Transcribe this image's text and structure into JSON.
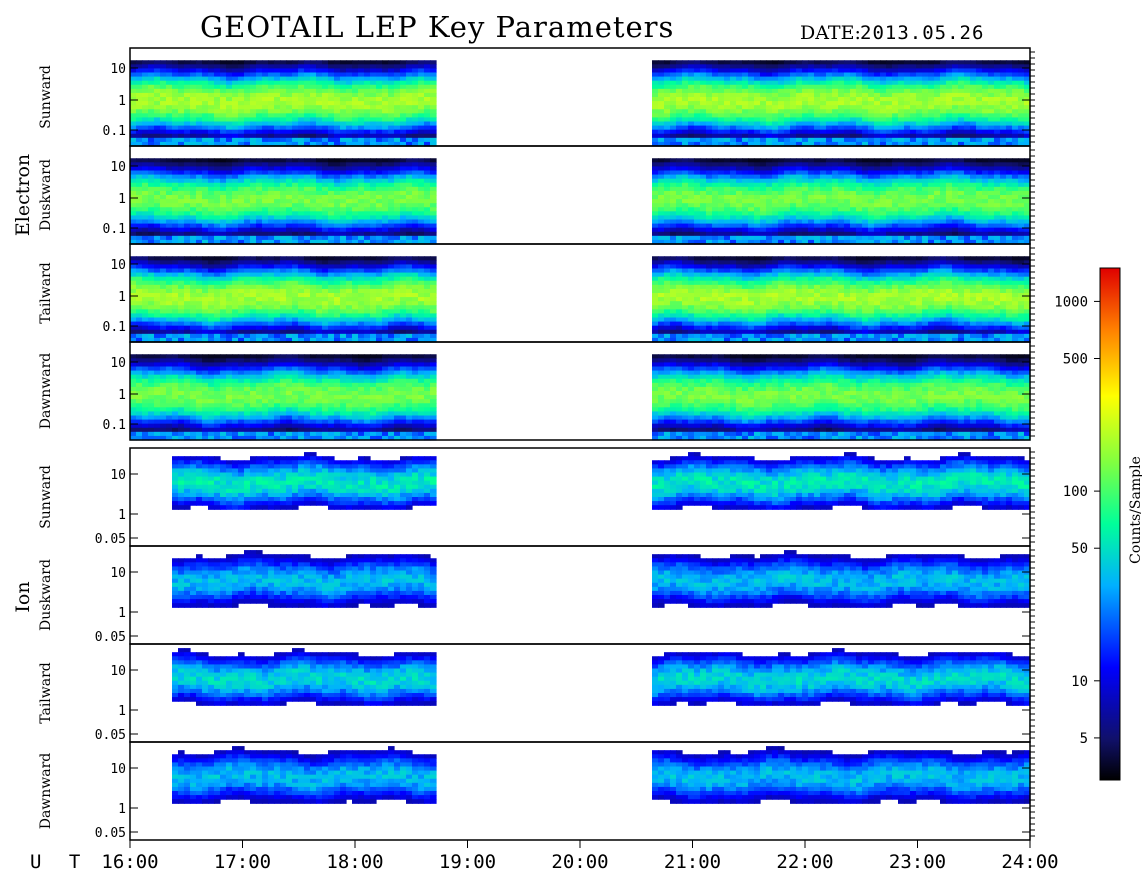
{
  "header": {
    "title": "GEOTAIL LEP Key Parameters",
    "date_label": "DATE:",
    "date_value": "2013.05.26"
  },
  "colorbar": {
    "label": "Counts/Sample",
    "ticks": [
      "1000",
      "500",
      "100",
      "50",
      "10",
      "5"
    ],
    "tick_values": [
      1000,
      500,
      100,
      50,
      10,
      5
    ],
    "range": [
      3,
      1500
    ],
    "scale": "log"
  },
  "chart_data": {
    "type": "heatmap",
    "title": "GEOTAIL LEP Key Parameters",
    "x_axis": {
      "label": "U T",
      "ticks": [
        "16:00",
        "17:00",
        "18:00",
        "19:00",
        "20:00",
        "21:00",
        "22:00",
        "23:00",
        "24:00"
      ],
      "range_hours": [
        16,
        24
      ]
    },
    "data_gaps": [
      {
        "start": "18:42",
        "end": "20:40"
      }
    ],
    "groups": [
      {
        "name": "Electron",
        "y_ticks": [
          "10",
          "1",
          "0.1"
        ],
        "y_scale": "log",
        "panels": [
          {
            "name": "Sunward",
            "peak_band_keV": [
              0.8,
              3
            ],
            "max_counts": 200
          },
          {
            "name": "Duskward",
            "peak_band_keV": [
              0.8,
              3
            ],
            "max_counts": 150
          },
          {
            "name": "Tailward",
            "peak_band_keV": [
              0.8,
              3
            ],
            "max_counts": 200
          },
          {
            "name": "Dawnward",
            "peak_band_keV": [
              0.8,
              3
            ],
            "max_counts": 150
          }
        ]
      },
      {
        "name": "Ion",
        "y_ticks": [
          "10",
          "1",
          "0.05"
        ],
        "y_scale": "log",
        "panels": [
          {
            "name": "Sunward",
            "peak_band_keV": [
              3,
              20
            ],
            "max_counts": 60
          },
          {
            "name": "Duskward",
            "peak_band_keV": [
              3,
              20
            ],
            "max_counts": 40
          },
          {
            "name": "Tailward",
            "peak_band_keV": [
              3,
              20
            ],
            "max_counts": 50
          },
          {
            "name": "Dawnward",
            "peak_band_keV": [
              3,
              20
            ],
            "max_counts": 40
          }
        ]
      }
    ],
    "colorscale": "jet",
    "color_label": "Counts/Sample"
  }
}
